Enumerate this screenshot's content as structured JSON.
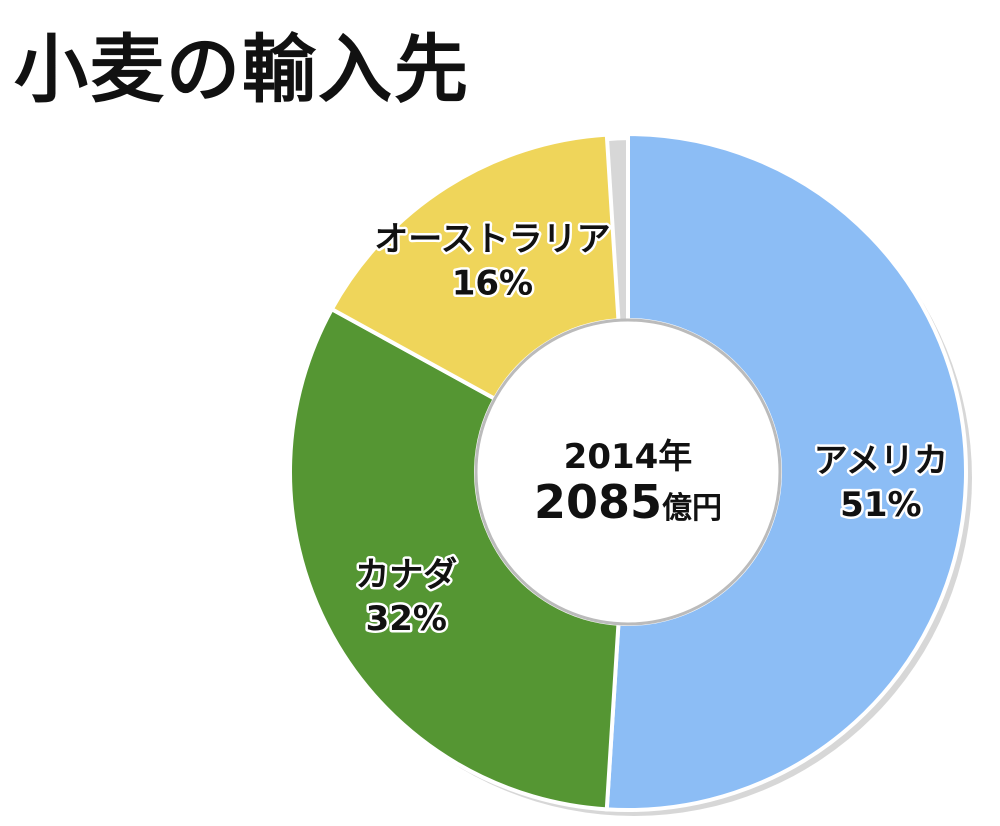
{
  "title": "小麦の輸入先",
  "colors": {
    "gap": "#ffffff",
    "shadow": "#bdbdbd",
    "inner": "#ffffff"
  },
  "chart_data": {
    "type": "pie",
    "title": "小麦の輸入先",
    "center": {
      "year": "2014年",
      "amount": "2085",
      "unit": "億円"
    },
    "gap_percent": 1,
    "slices": [
      {
        "label": "アメリカ",
        "value": 51,
        "value_label": "51%",
        "color": "#8cbdf5"
      },
      {
        "label": "カナダ",
        "value": 32,
        "value_label": "32%",
        "color": "#559633"
      },
      {
        "label": "オーストラリア",
        "value": 16,
        "value_label": "16%",
        "color": "#efd55a"
      }
    ]
  }
}
